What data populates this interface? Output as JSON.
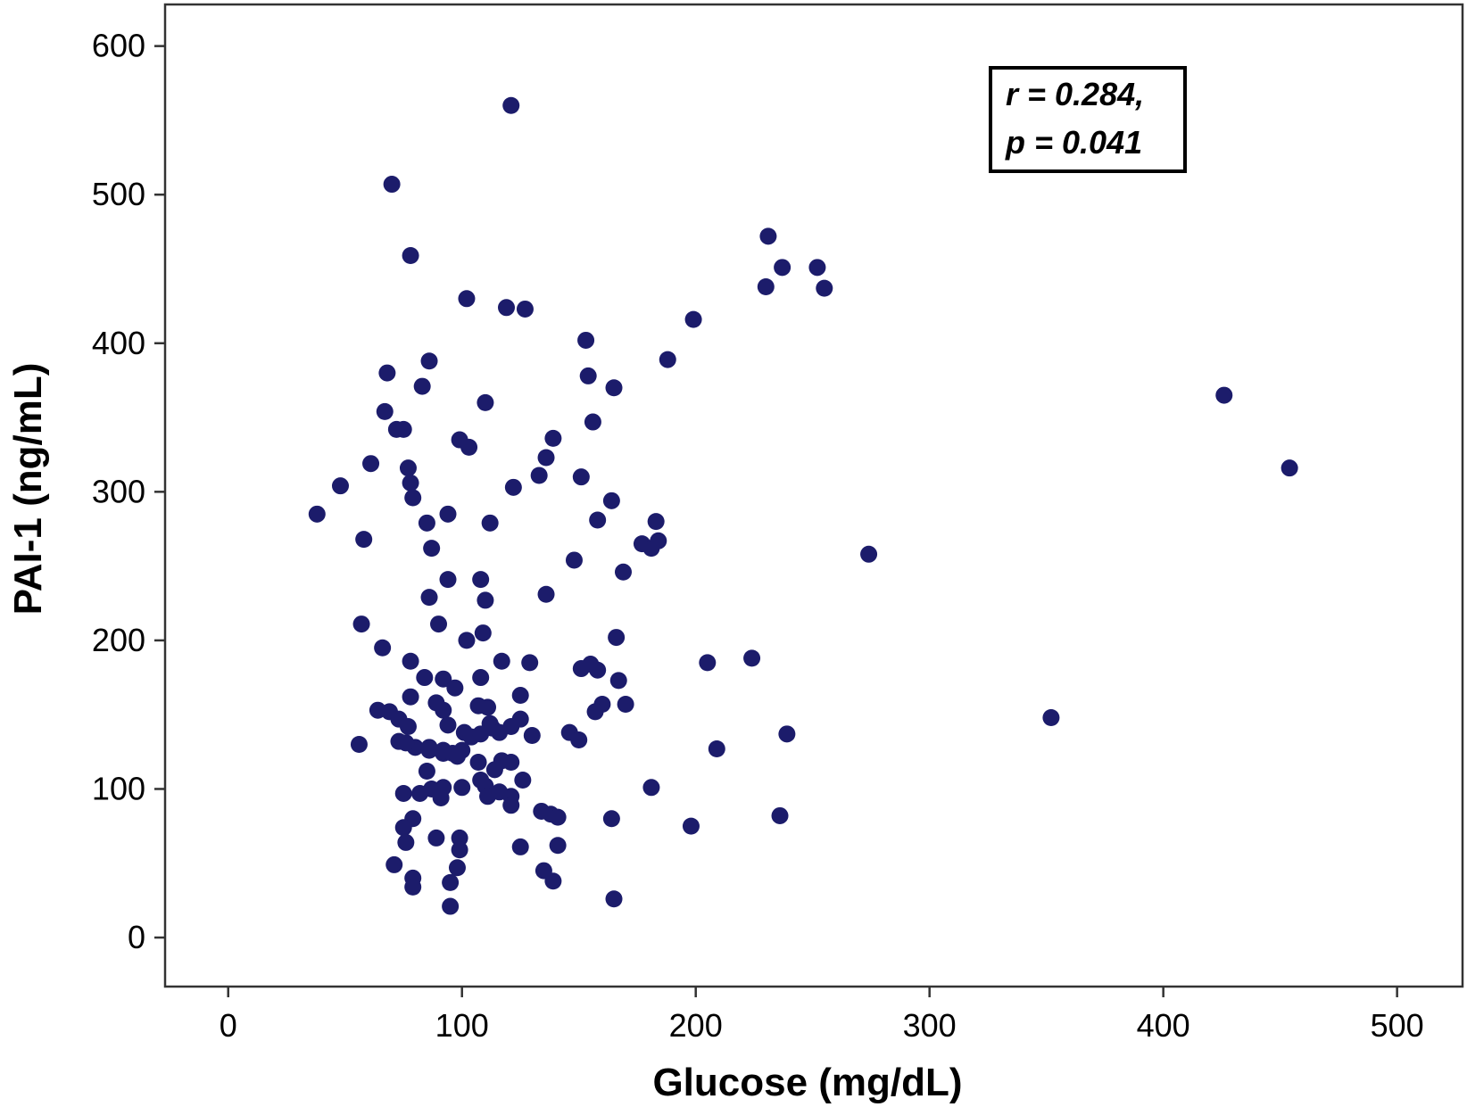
{
  "chart_data": {
    "type": "scatter",
    "title": "",
    "xlabel": "Glucose (mg/dL)",
    "ylabel": "PAI-1 (ng/mL)",
    "xlim": [
      -27,
      528
    ],
    "ylim": [
      -33,
      628
    ],
    "xticks": [
      0,
      100,
      200,
      300,
      400,
      500
    ],
    "yticks": [
      0,
      100,
      200,
      300,
      400,
      500,
      600
    ],
    "grid": false,
    "legend": "none",
    "point_color": "#1c1c6b",
    "annotation": {
      "line1": "r = 0.284,",
      "line2": "p = 0.041",
      "position": "top-right"
    },
    "series": [
      {
        "points": [
          [
            121,
            560
          ],
          [
            70,
            507
          ],
          [
            78,
            459
          ],
          [
            231,
            472
          ],
          [
            237,
            451
          ],
          [
            252,
            451
          ],
          [
            230,
            438
          ],
          [
            255,
            437
          ],
          [
            102,
            430
          ],
          [
            119,
            424
          ],
          [
            127,
            423
          ],
          [
            199,
            416
          ],
          [
            153,
            402
          ],
          [
            188,
            389
          ],
          [
            86,
            388
          ],
          [
            68,
            380
          ],
          [
            154,
            378
          ],
          [
            83,
            371
          ],
          [
            165,
            370
          ],
          [
            426,
            365
          ],
          [
            110,
            360
          ],
          [
            67,
            354
          ],
          [
            156,
            347
          ],
          [
            72,
            342
          ],
          [
            75,
            342
          ],
          [
            99,
            335
          ],
          [
            139,
            336
          ],
          [
            103,
            330
          ],
          [
            136,
            323
          ],
          [
            61,
            319
          ],
          [
            77,
            316
          ],
          [
            133,
            311
          ],
          [
            454,
            316
          ],
          [
            151,
            310
          ],
          [
            78,
            306
          ],
          [
            48,
            304
          ],
          [
            122,
            303
          ],
          [
            79,
            296
          ],
          [
            164,
            294
          ],
          [
            38,
            285
          ],
          [
            94,
            285
          ],
          [
            158,
            281
          ],
          [
            183,
            280
          ],
          [
            85,
            279
          ],
          [
            112,
            279
          ],
          [
            58,
            268
          ],
          [
            177,
            265
          ],
          [
            181,
            262
          ],
          [
            184,
            267
          ],
          [
            87,
            262
          ],
          [
            274,
            258
          ],
          [
            148,
            254
          ],
          [
            169,
            246
          ],
          [
            94,
            241
          ],
          [
            108,
            241
          ],
          [
            136,
            231
          ],
          [
            86,
            229
          ],
          [
            110,
            227
          ],
          [
            57,
            211
          ],
          [
            90,
            211
          ],
          [
            109,
            205
          ],
          [
            166,
            202
          ],
          [
            102,
            200
          ],
          [
            66,
            195
          ],
          [
            224,
            188
          ],
          [
            78,
            186
          ],
          [
            117,
            186
          ],
          [
            129,
            185
          ],
          [
            205,
            185
          ],
          [
            151,
            181
          ],
          [
            155,
            184
          ],
          [
            158,
            180
          ],
          [
            84,
            175
          ],
          [
            92,
            174
          ],
          [
            108,
            175
          ],
          [
            167,
            173
          ],
          [
            97,
            168
          ],
          [
            78,
            162
          ],
          [
            125,
            163
          ],
          [
            89,
            158
          ],
          [
            107,
            156
          ],
          [
            111,
            155
          ],
          [
            160,
            157
          ],
          [
            170,
            157
          ],
          [
            64,
            153
          ],
          [
            69,
            152
          ],
          [
            92,
            153
          ],
          [
            157,
            152
          ],
          [
            73,
            147
          ],
          [
            125,
            147
          ],
          [
            77,
            142
          ],
          [
            94,
            143
          ],
          [
            112,
            144
          ],
          [
            113,
            141
          ],
          [
            121,
            142
          ],
          [
            146,
            138
          ],
          [
            352,
            148
          ],
          [
            239,
            137
          ],
          [
            101,
            138
          ],
          [
            104,
            135
          ],
          [
            108,
            137
          ],
          [
            116,
            138
          ],
          [
            130,
            136
          ],
          [
            56,
            130
          ],
          [
            73,
            132
          ],
          [
            80,
            128
          ],
          [
            86,
            126
          ],
          [
            92,
            124
          ],
          [
            96,
            124
          ],
          [
            98,
            122
          ],
          [
            150,
            133
          ],
          [
            76,
            131
          ],
          [
            86,
            128
          ],
          [
            209,
            127
          ],
          [
            92,
            126
          ],
          [
            100,
            126
          ],
          [
            117,
            119
          ],
          [
            107,
            118
          ],
          [
            114,
            113
          ],
          [
            121,
            118
          ],
          [
            85,
            112
          ],
          [
            110,
            102
          ],
          [
            92,
            101
          ],
          [
            100,
            101
          ],
          [
            108,
            106
          ],
          [
            126,
            106
          ],
          [
            181,
            101
          ],
          [
            87,
            100
          ],
          [
            111,
            95
          ],
          [
            116,
            98
          ],
          [
            75,
            97
          ],
          [
            82,
            97
          ],
          [
            91,
            94
          ],
          [
            121,
            95
          ],
          [
            121,
            89
          ],
          [
            134,
            85
          ],
          [
            138,
            83
          ],
          [
            141,
            81
          ],
          [
            164,
            80
          ],
          [
            236,
            82
          ],
          [
            79,
            80
          ],
          [
            75,
            74
          ],
          [
            198,
            75
          ],
          [
            89,
            67
          ],
          [
            99,
            67
          ],
          [
            76,
            64
          ],
          [
            125,
            61
          ],
          [
            141,
            62
          ],
          [
            99,
            59
          ],
          [
            71,
            49
          ],
          [
            98,
            47
          ],
          [
            135,
            45
          ],
          [
            79,
            40
          ],
          [
            95,
            37
          ],
          [
            139,
            38
          ],
          [
            79,
            34
          ],
          [
            165,
            26
          ],
          [
            95,
            21
          ]
        ]
      }
    ]
  }
}
